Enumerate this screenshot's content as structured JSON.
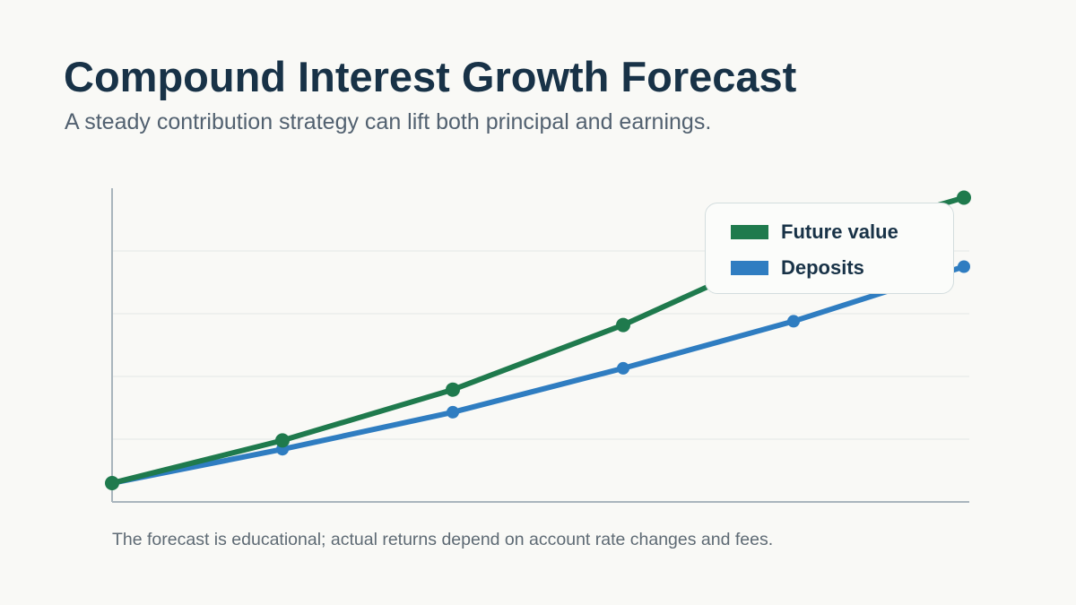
{
  "title": "Compound Interest Growth Forecast",
  "subtitle": "A steady contribution strategy can lift both principal and earnings.",
  "footnote": "The forecast is educational; actual returns depend on account rate changes and fees.",
  "colors": {
    "background": "#f9f9f6",
    "title": "#183247",
    "future_value": "#1f7a4d",
    "deposits": "#2f7dc1",
    "grid": "#e4e8e6",
    "axis": "#a9b5bd"
  },
  "chart_data": {
    "type": "line",
    "x": [
      0,
      1,
      2,
      3,
      4,
      5
    ],
    "xlabel": "",
    "ylabel": "",
    "ylim": [
      0,
      5
    ],
    "grid": true,
    "axis_ticks_labeled": false,
    "legend_position": "top-right",
    "series": [
      {
        "name": "Future value",
        "color": "#1f7a4d",
        "values": [
          0.3,
          0.98,
          1.79,
          2.82,
          4.05,
          4.85
        ]
      },
      {
        "name": "Deposits",
        "color": "#2f7dc1",
        "values": [
          0.3,
          0.84,
          1.43,
          2.13,
          2.88,
          3.75
        ]
      }
    ]
  }
}
